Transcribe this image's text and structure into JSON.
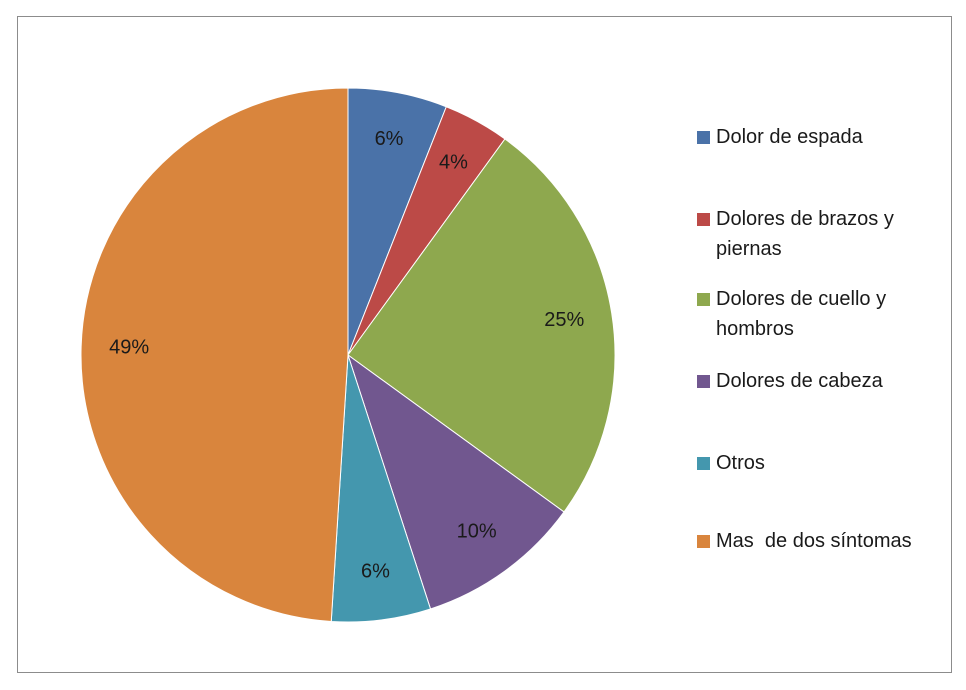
{
  "chart_data": {
    "type": "pie",
    "categories": [
      "Dolor de espada",
      "Dolores de brazos y piernas",
      "Dolores de cuello y hombros",
      "Dolores de cabeza",
      "Otros",
      "Mas  de dos síntomas"
    ],
    "values": [
      6,
      4,
      25,
      10,
      6,
      49
    ],
    "value_labels": [
      "6%",
      "4%",
      "25%",
      "10%",
      "6%",
      "49%"
    ],
    "colors": [
      "#4a72a8",
      "#bc4a47",
      "#8ea84e",
      "#71578f",
      "#4497ae",
      "#d9853d"
    ],
    "legend": "right"
  }
}
